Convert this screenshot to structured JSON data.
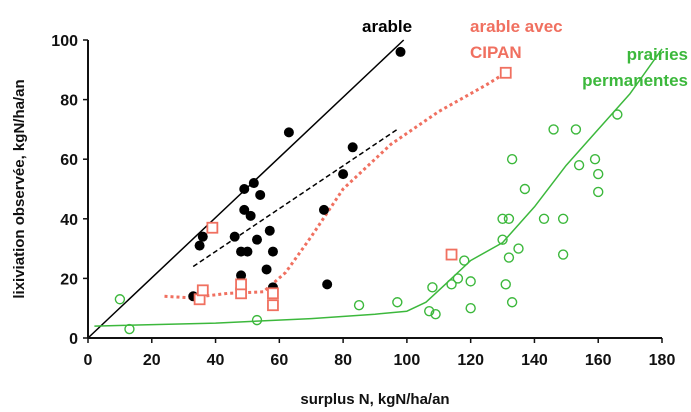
{
  "chart_data": {
    "type": "scatter",
    "xlabel": "surplus N, kgN/ha/an",
    "ylabel": "lixiviation observée, kgN/ha/an",
    "xlim": [
      0,
      180
    ],
    "ylim": [
      0,
      100
    ],
    "xticks": [
      0,
      20,
      40,
      60,
      80,
      100,
      120,
      140,
      160,
      180
    ],
    "yticks": [
      0,
      20,
      40,
      60,
      80,
      100
    ],
    "grid": false,
    "colors": {
      "arable": "#000000",
      "cipan": "#f07060",
      "prairies": "#3cb83c"
    },
    "annotations": [
      {
        "text": "arable",
        "color": "#000000"
      },
      {
        "text": "arable avec",
        "color": "#f07060"
      },
      {
        "text": "CIPAN",
        "color": "#f07060"
      },
      {
        "text": "prairies",
        "color": "#3cb83c"
      },
      {
        "text": "permanentes",
        "color": "#3cb83c"
      }
    ],
    "series": [
      {
        "marker": "filled-circle",
        "points": [
          [
            33,
            14
          ],
          [
            35,
            31
          ],
          [
            36,
            34
          ],
          [
            46,
            34
          ],
          [
            48,
            21
          ],
          [
            48,
            29
          ],
          [
            49,
            50
          ],
          [
            49,
            43
          ],
          [
            50,
            29
          ],
          [
            51,
            41
          ],
          [
            52,
            52
          ],
          [
            53,
            33
          ],
          [
            54,
            48
          ],
          [
            56,
            23
          ],
          [
            57,
            36
          ],
          [
            58,
            29
          ],
          [
            58,
            17
          ],
          [
            63,
            69
          ],
          [
            75,
            18
          ],
          [
            74,
            43
          ],
          [
            80,
            55
          ],
          [
            83,
            64
          ],
          [
            98,
            96
          ]
        ]
      },
      {
        "marker": "open-square",
        "points": [
          [
            35,
            13
          ],
          [
            36,
            16
          ],
          [
            39,
            37
          ],
          [
            48,
            15
          ],
          [
            48,
            18
          ],
          [
            58,
            11
          ],
          [
            58,
            15
          ],
          [
            114,
            28
          ],
          [
            131,
            89
          ]
        ]
      },
      {
        "marker": "open-circle",
        "points": [
          [
            10,
            13
          ],
          [
            13,
            3
          ],
          [
            53,
            6
          ],
          [
            85,
            11
          ],
          [
            97,
            12
          ],
          [
            107,
            9
          ],
          [
            108,
            17
          ],
          [
            109,
            8
          ],
          [
            114,
            18
          ],
          [
            116,
            20
          ],
          [
            118,
            26
          ],
          [
            120,
            19
          ],
          [
            120,
            10
          ],
          [
            130,
            33
          ],
          [
            130,
            40
          ],
          [
            131,
            18
          ],
          [
            132,
            40
          ],
          [
            132,
            27
          ],
          [
            133,
            12
          ],
          [
            133,
            60
          ],
          [
            135,
            30
          ],
          [
            137,
            50
          ],
          [
            143,
            40
          ],
          [
            146,
            70
          ],
          [
            149,
            28
          ],
          [
            149,
            40
          ],
          [
            153,
            70
          ],
          [
            154,
            58
          ],
          [
            159,
            60
          ],
          [
            160,
            55
          ],
          [
            160,
            49
          ],
          [
            166,
            75
          ]
        ]
      }
    ],
    "lines": [
      {
        "style": "solid",
        "color": "#000000",
        "points": [
          [
            0,
            0
          ],
          [
            99,
            100
          ]
        ]
      },
      {
        "style": "dashed",
        "color": "#000000",
        "points": [
          [
            33,
            24
          ],
          [
            97,
            70
          ]
        ]
      },
      {
        "style": "dotted",
        "color": "#f07060",
        "points": [
          [
            24,
            14
          ],
          [
            32,
            13.5
          ],
          [
            44,
            15
          ],
          [
            55,
            15.5
          ],
          [
            62,
            22
          ],
          [
            70,
            34
          ],
          [
            80,
            50
          ],
          [
            95,
            65
          ],
          [
            110,
            76
          ],
          [
            125,
            85
          ],
          [
            131,
            89
          ]
        ]
      },
      {
        "style": "solid",
        "color": "#3cb83c",
        "points": [
          [
            2,
            4
          ],
          [
            40,
            5
          ],
          [
            70,
            6.5
          ],
          [
            90,
            8
          ],
          [
            100,
            9
          ],
          [
            106,
            12
          ],
          [
            112,
            18
          ],
          [
            120,
            26
          ],
          [
            130,
            32
          ],
          [
            140,
            44
          ],
          [
            150,
            58
          ],
          [
            160,
            70
          ],
          [
            170,
            82
          ],
          [
            180,
            97
          ]
        ]
      }
    ]
  }
}
